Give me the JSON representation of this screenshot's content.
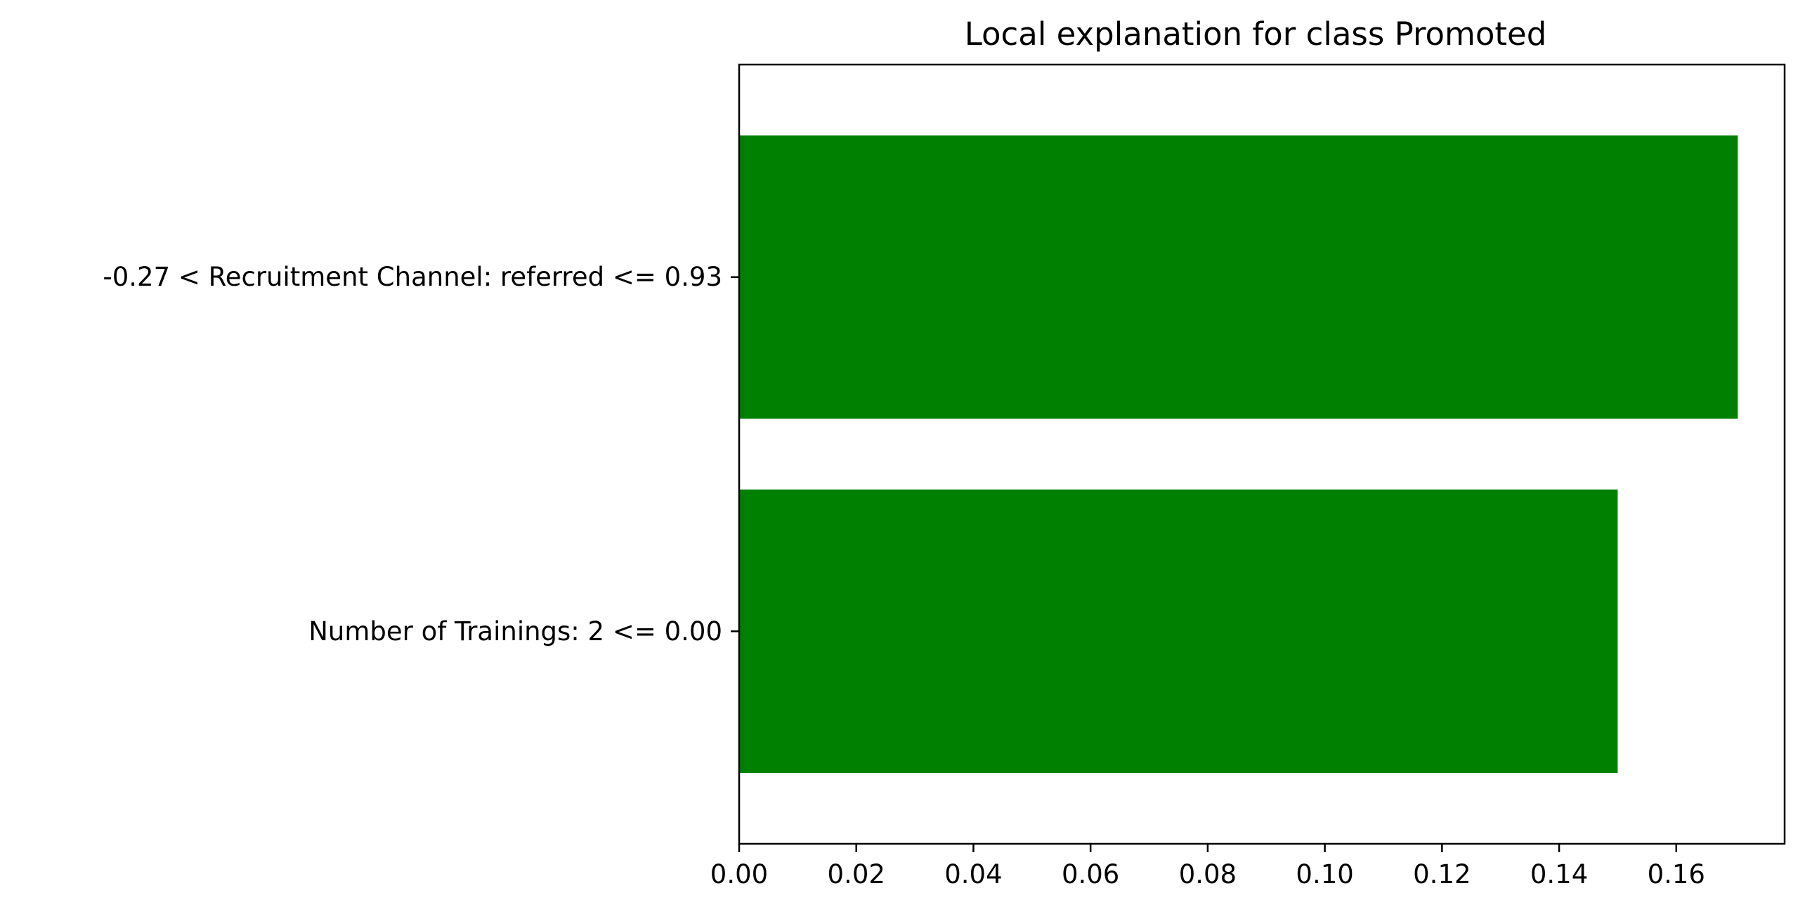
{
  "chart_data": {
    "type": "bar",
    "orientation": "horizontal",
    "title": "Local explanation for class Promoted",
    "xlabel": "",
    "ylabel": "",
    "categories": [
      "-0.27 < Recruitment Channel: referred <= 0.93",
      "Number of Trainings: 2 <= 0.00"
    ],
    "values": [
      0.1705,
      0.15
    ],
    "xlim": [
      0,
      0.1785
    ],
    "xticks": [
      0.0,
      0.02,
      0.04,
      0.06,
      0.08,
      0.1,
      0.12,
      0.14,
      0.16
    ],
    "xtick_labels": [
      "0.00",
      "0.02",
      "0.04",
      "0.06",
      "0.08",
      "0.10",
      "0.12",
      "0.14",
      "0.16"
    ],
    "bar_color": "#008000",
    "grid": false,
    "legend": "none"
  }
}
